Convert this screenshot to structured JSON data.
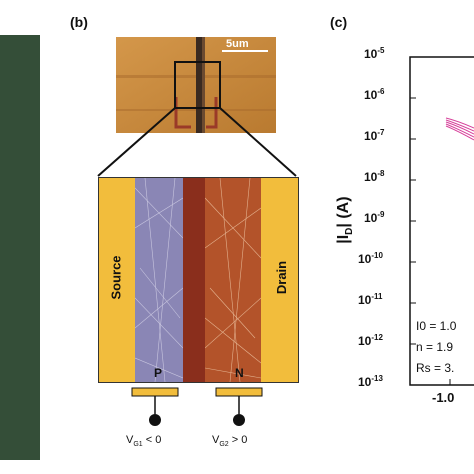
{
  "panels": {
    "a": {
      "label": "",
      "background": "#344e38"
    },
    "b": {
      "label": "(b)",
      "scale_bar": "5um",
      "source_label": "Source",
      "drain_label": "Drain",
      "p_label": "P",
      "n_label": "N",
      "gate1": {
        "v": "V",
        "sub": "G1",
        "rest": " < 0"
      },
      "gate2": {
        "v": "V",
        "sub": "G2",
        "rest": " > 0"
      },
      "colors": {
        "electrode": "#f2bd3c",
        "p_region": "#8a86b5",
        "n_region": "#a8451f",
        "substrate": "#c98a3c"
      }
    },
    "c": {
      "label": "(c)",
      "ylabel": {
        "main": "|I",
        "sub": "D",
        "rest": "| (A)"
      },
      "yticks": [
        {
          "base": "10",
          "exp": "-5"
        },
        {
          "base": "10",
          "exp": "-6"
        },
        {
          "base": "10",
          "exp": "-7"
        },
        {
          "base": "10",
          "exp": "-8"
        },
        {
          "base": "10",
          "exp": "-9"
        },
        {
          "base": "10",
          "exp": "-10"
        },
        {
          "base": "10",
          "exp": "-11"
        },
        {
          "base": "10",
          "exp": "-12"
        },
        {
          "base": "10",
          "exp": "-13"
        }
      ],
      "xticks": [
        "-1.0"
      ],
      "fit_params": [
        "I0 = 1.0",
        "n = 1.9",
        "Rs = 3."
      ],
      "curve_color": "#d6409a"
    }
  }
}
